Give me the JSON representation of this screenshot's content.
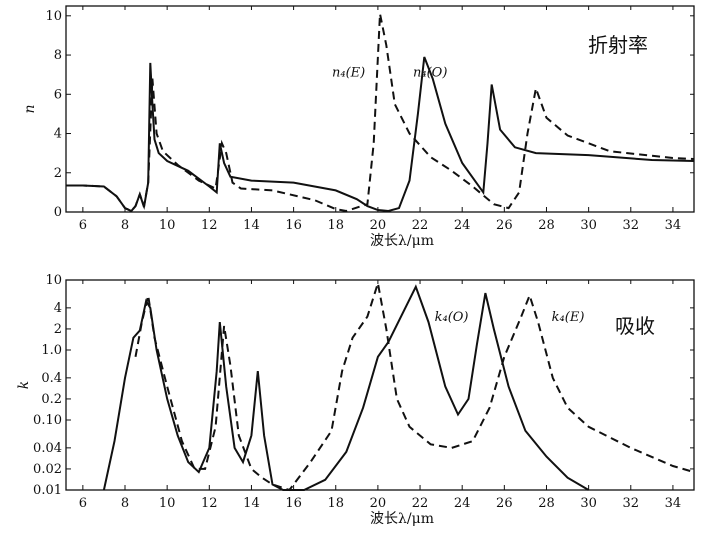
{
  "chart_data": [
    {
      "type": "line",
      "panel_label": "折射率",
      "ylabel": "n",
      "xlabel": "波长λ/μm",
      "xlim": [
        5.2,
        35
      ],
      "ylim": [
        0,
        10.5
      ],
      "y_scale": "linear",
      "xticks": [
        6,
        8,
        10,
        12,
        14,
        16,
        18,
        20,
        22,
        24,
        26,
        28,
        30,
        32,
        34
      ],
      "yticks": [
        0,
        2,
        4,
        6,
        8,
        10
      ],
      "series": [
        {
          "name": "n₄(O)",
          "style": "solid",
          "points": [
            [
              5.2,
              1.35
            ],
            [
              6,
              1.35
            ],
            [
              7,
              1.3
            ],
            [
              7.6,
              0.8
            ],
            [
              8,
              0.2
            ],
            [
              8.3,
              0.05
            ],
            [
              8.5,
              0.3
            ],
            [
              8.7,
              0.9
            ],
            [
              8.9,
              0.25
            ],
            [
              9.1,
              1.5
            ],
            [
              9.2,
              7.6
            ],
            [
              9.3,
              5.5
            ],
            [
              9.4,
              3.7
            ],
            [
              9.6,
              3.0
            ],
            [
              10,
              2.6
            ],
            [
              11,
              2.1
            ],
            [
              12,
              1.3
            ],
            [
              12.35,
              1.0
            ],
            [
              12.5,
              3.5
            ],
            [
              12.7,
              2.5
            ],
            [
              13,
              1.8
            ],
            [
              14,
              1.6
            ],
            [
              16,
              1.5
            ],
            [
              18,
              1.1
            ],
            [
              19,
              0.65
            ],
            [
              19.5,
              0.3
            ],
            [
              20,
              0.1
            ],
            [
              20.5,
              0.05
            ],
            [
              21,
              0.2
            ],
            [
              21.5,
              1.6
            ],
            [
              21.9,
              5
            ],
            [
              22.2,
              7.9
            ],
            [
              22.6,
              6.8
            ],
            [
              23.2,
              4.5
            ],
            [
              24,
              2.5
            ],
            [
              24.6,
              1.6
            ],
            [
              25,
              1.0
            ],
            [
              25.2,
              3.5
            ],
            [
              25.4,
              6.5
            ],
            [
              25.8,
              4.2
            ],
            [
              26.5,
              3.3
            ],
            [
              27.5,
              3.0
            ],
            [
              30,
              2.9
            ],
            [
              33,
              2.65
            ],
            [
              35,
              2.6
            ]
          ]
        },
        {
          "name": "n₄(E)",
          "style": "dashed",
          "points": [
            [
              5.2,
              1.35
            ],
            [
              6,
              1.35
            ],
            [
              7,
              1.3
            ],
            [
              7.6,
              0.8
            ],
            [
              8,
              0.2
            ],
            [
              8.3,
              0.05
            ],
            [
              8.5,
              0.3
            ],
            [
              8.7,
              0.9
            ],
            [
              8.9,
              0.3
            ],
            [
              9.1,
              1.5
            ],
            [
              9.3,
              6.8
            ],
            [
              9.5,
              4.0
            ],
            [
              9.8,
              3.1
            ],
            [
              10.5,
              2.4
            ],
            [
              11.5,
              1.6
            ],
            [
              12.3,
              1.2
            ],
            [
              12.6,
              3.5
            ],
            [
              12.8,
              3.0
            ],
            [
              13.1,
              1.5
            ],
            [
              13.5,
              1.2
            ],
            [
              15,
              1.1
            ],
            [
              17,
              0.6
            ],
            [
              18,
              0.15
            ],
            [
              18.5,
              0.05
            ],
            [
              19.5,
              0.4
            ],
            [
              19.8,
              3.5
            ],
            [
              20.1,
              10.1
            ],
            [
              20.4,
              8.5
            ],
            [
              20.8,
              5.5
            ],
            [
              21.5,
              4.0
            ],
            [
              22.5,
              2.8
            ],
            [
              23.5,
              2.1
            ],
            [
              24.5,
              1.3
            ],
            [
              25.5,
              0.4
            ],
            [
              26.2,
              0.2
            ],
            [
              26.7,
              1.0
            ],
            [
              27.1,
              4.0
            ],
            [
              27.5,
              6.3
            ],
            [
              28,
              4.8
            ],
            [
              29,
              3.9
            ],
            [
              31,
              3.1
            ],
            [
              34,
              2.75
            ],
            [
              35,
              2.7
            ]
          ]
        }
      ],
      "annotations": [
        {
          "text": "n₄(E)",
          "x": 19.4,
          "y": 6.9
        },
        {
          "text": "n₄(O)",
          "x": 23.3,
          "y": 6.9
        }
      ]
    },
    {
      "type": "line",
      "panel_label": "吸收",
      "ylabel": "k",
      "xlabel": "波长λ/μm",
      "xlim": [
        5.2,
        35
      ],
      "ylim": [
        0.01,
        10
      ],
      "y_scale": "log",
      "xticks": [
        6,
        8,
        10,
        12,
        14,
        16,
        18,
        20,
        22,
        24,
        26,
        28,
        30,
        32,
        34
      ],
      "yticks": [
        10,
        4,
        2,
        1.0,
        0.4,
        0.2,
        0.1,
        0.04,
        0.02,
        0.01
      ],
      "ytick_labels": [
        "10",
        "4",
        "2",
        "1.0",
        "0.4",
        "0.2",
        "0.10",
        "0.04",
        "0.02",
        "0.01"
      ],
      "series": [
        {
          "name": "k₄(O)",
          "style": "solid",
          "points": [
            [
              7,
              0.01
            ],
            [
              7.5,
              0.05
            ],
            [
              8,
              0.4
            ],
            [
              8.4,
              1.5
            ],
            [
              8.7,
              1.9
            ],
            [
              9.0,
              5.0
            ],
            [
              9.2,
              4.0
            ],
            [
              9.5,
              1.0
            ],
            [
              10,
              0.2
            ],
            [
              10.5,
              0.06
            ],
            [
              11,
              0.025
            ],
            [
              11.5,
              0.018
            ],
            [
              12,
              0.04
            ],
            [
              12.35,
              0.5
            ],
            [
              12.5,
              2.5
            ],
            [
              12.8,
              0.3
            ],
            [
              13.2,
              0.04
            ],
            [
              13.6,
              0.025
            ],
            [
              14,
              0.06
            ],
            [
              14.3,
              0.5
            ],
            [
              14.6,
              0.06
            ],
            [
              15,
              0.012
            ],
            [
              15.5,
              0.01
            ],
            [
              16.5,
              0.01
            ],
            [
              17.5,
              0.014
            ],
            [
              18.5,
              0.035
            ],
            [
              19.3,
              0.15
            ],
            [
              20,
              0.8
            ],
            [
              20.5,
              1.3
            ],
            [
              21.3,
              4.0
            ],
            [
              21.8,
              8.0
            ],
            [
              22.4,
              2.5
            ],
            [
              23.2,
              0.3
            ],
            [
              23.8,
              0.12
            ],
            [
              24.3,
              0.2
            ],
            [
              24.7,
              1.2
            ],
            [
              25.1,
              6.5
            ],
            [
              25.5,
              2.0
            ],
            [
              26.2,
              0.3
            ],
            [
              27,
              0.07
            ],
            [
              28,
              0.03
            ],
            [
              29,
              0.015
            ],
            [
              30,
              0.01
            ]
          ]
        },
        {
          "name": "k₄(E)",
          "style": "dashed",
          "points": [
            [
              8.5,
              0.8
            ],
            [
              8.8,
              2.5
            ],
            [
              9.1,
              6.0
            ],
            [
              9.4,
              1.5
            ],
            [
              10,
              0.3
            ],
            [
              10.7,
              0.05
            ],
            [
              11.3,
              0.02
            ],
            [
              11.8,
              0.02
            ],
            [
              12.3,
              0.08
            ],
            [
              12.7,
              2.2
            ],
            [
              13,
              0.6
            ],
            [
              13.4,
              0.06
            ],
            [
              14,
              0.02
            ],
            [
              14.5,
              0.015
            ],
            [
              15,
              0.012
            ],
            [
              15.8,
              0.01
            ],
            [
              16.8,
              0.025
            ],
            [
              17.8,
              0.07
            ],
            [
              18.3,
              0.5
            ],
            [
              18.8,
              1.5
            ],
            [
              19.5,
              3.0
            ],
            [
              20,
              9.0
            ],
            [
              20.4,
              2.0
            ],
            [
              20.9,
              0.2
            ],
            [
              21.5,
              0.08
            ],
            [
              22.5,
              0.045
            ],
            [
              23.5,
              0.04
            ],
            [
              24.5,
              0.05
            ],
            [
              25.3,
              0.15
            ],
            [
              26,
              0.8
            ],
            [
              26.8,
              3.0
            ],
            [
              27.2,
              6.0
            ],
            [
              27.6,
              2.5
            ],
            [
              28.3,
              0.4
            ],
            [
              29,
              0.15
            ],
            [
              30,
              0.08
            ],
            [
              32,
              0.04
            ],
            [
              34,
              0.022
            ],
            [
              35,
              0.018
            ]
          ]
        }
      ],
      "annotations": [
        {
          "text": "k₄(O)",
          "x": 24.3,
          "y": 2.6
        },
        {
          "text": "k₄(E)",
          "x": 29.8,
          "y": 2.6
        }
      ]
    }
  ]
}
